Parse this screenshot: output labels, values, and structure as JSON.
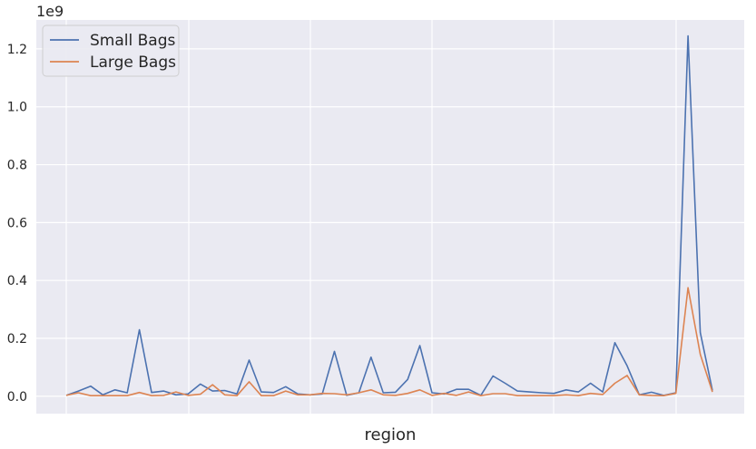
{
  "chart_data": {
    "type": "line",
    "title": "",
    "xlabel": "region",
    "ylabel": "",
    "y_offset_text": "1e9",
    "ylim": [
      -0.06,
      1.3
    ],
    "yticks": [
      0.0,
      0.2,
      0.4,
      0.6,
      0.8,
      1.0,
      1.2
    ],
    "ytick_labels": [
      "0.0",
      "0.2",
      "0.4",
      "0.6",
      "0.8",
      "1.0",
      "1.2"
    ],
    "y_scale": 1000000000,
    "grid": true,
    "legend_position": "top-left",
    "x": [
      0,
      1,
      2,
      3,
      4,
      5,
      6,
      7,
      8,
      9,
      10,
      11,
      12,
      13,
      14,
      15,
      16,
      17,
      18,
      19,
      20,
      21,
      22,
      23,
      24,
      25,
      26,
      27,
      28,
      29,
      30,
      31,
      32,
      33,
      34,
      35,
      36,
      37,
      38,
      39,
      40,
      41,
      42,
      43,
      44,
      45,
      46,
      47,
      48,
      49,
      50,
      51,
      52,
      53
    ],
    "series": [
      {
        "name": "Small Bags",
        "color": "#4c72b0",
        "values": [
          0.003,
          0.018,
          0.035,
          0.005,
          0.022,
          0.012,
          0.23,
          0.013,
          0.018,
          0.005,
          0.008,
          0.042,
          0.018,
          0.02,
          0.008,
          0.125,
          0.015,
          0.013,
          0.033,
          0.008,
          0.005,
          0.008,
          0.155,
          0.003,
          0.012,
          0.135,
          0.012,
          0.014,
          0.058,
          0.175,
          0.012,
          0.008,
          0.024,
          0.024,
          0.003,
          0.07,
          0.045,
          0.018,
          0.015,
          0.012,
          0.01,
          0.022,
          0.015,
          0.045,
          0.015,
          0.185,
          0.105,
          0.005,
          0.014,
          0.003,
          0.012,
          1.245,
          0.22,
          0.02
        ]
      },
      {
        "name": "Large Bags",
        "color": "#dd8452",
        "values": [
          0.003,
          0.012,
          0.002,
          0.002,
          0.002,
          0.002,
          0.013,
          0.002,
          0.003,
          0.015,
          0.003,
          0.007,
          0.04,
          0.005,
          0.002,
          0.05,
          0.002,
          0.002,
          0.018,
          0.005,
          0.005,
          0.01,
          0.009,
          0.005,
          0.012,
          0.022,
          0.005,
          0.003,
          0.01,
          0.022,
          0.003,
          0.01,
          0.003,
          0.015,
          0.002,
          0.009,
          0.009,
          0.002,
          0.002,
          0.002,
          0.002,
          0.005,
          0.002,
          0.01,
          0.006,
          0.045,
          0.072,
          0.005,
          0.003,
          0.002,
          0.01,
          0.375,
          0.145,
          0.015
        ]
      }
    ]
  }
}
